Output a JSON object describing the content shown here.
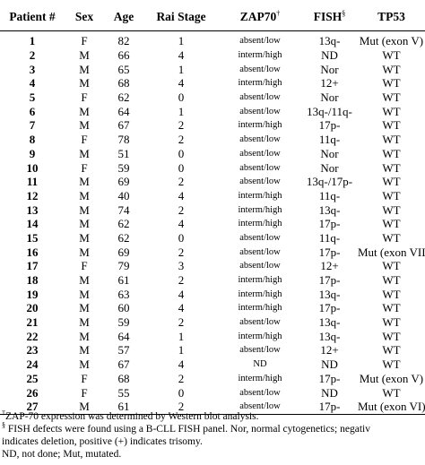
{
  "table": {
    "headers": {
      "patient": "Patient #",
      "sex": "Sex",
      "age": "Age",
      "rai": "Rai Stage",
      "zap70": "ZAP70",
      "zap70_mark": "†",
      "fish": "FISH",
      "fish_mark": "§",
      "tp53": "TP53"
    },
    "rows": [
      [
        "1",
        "F",
        "82",
        "1",
        "absent/low",
        "13q-",
        "Mut (exon V)"
      ],
      [
        "2",
        "M",
        "66",
        "4",
        "interm/high",
        "ND",
        "WT"
      ],
      [
        "3",
        "M",
        "65",
        "1",
        "absent/low",
        "Nor",
        "WT"
      ],
      [
        "4",
        "M",
        "68",
        "4",
        "interm/high",
        "12+",
        "WT"
      ],
      [
        "5",
        "F",
        "62",
        "0",
        "absent/low",
        "Nor",
        "WT"
      ],
      [
        "6",
        "M",
        "64",
        "1",
        "absent/low",
        "13q-/11q-",
        "WT"
      ],
      [
        "7",
        "M",
        "67",
        "2",
        "interm/high",
        "17p-",
        "WT"
      ],
      [
        "8",
        "F",
        "78",
        "2",
        "absent/low",
        "11q-",
        "WT"
      ],
      [
        "9",
        "M",
        "51",
        "0",
        "absent/low",
        "Nor",
        "WT"
      ],
      [
        "10",
        "F",
        "59",
        "0",
        "absent/low",
        "Nor",
        "WT"
      ],
      [
        "11",
        "M",
        "69",
        "2",
        "absent/low",
        "13q-/17p-",
        "WT"
      ],
      [
        "12",
        "M",
        "40",
        "4",
        "interm/high",
        "11q-",
        "WT"
      ],
      [
        "13",
        "M",
        "74",
        "2",
        "interm/high",
        "13q-",
        "WT"
      ],
      [
        "14",
        "M",
        "62",
        "4",
        "interm/high",
        "17p-",
        "WT"
      ],
      [
        "15",
        "M",
        "62",
        "0",
        "absent/low",
        "11q-",
        "WT"
      ],
      [
        "16",
        "M",
        "69",
        "2",
        "absent/low",
        "17p-",
        "Mut (exon VII)"
      ],
      [
        "17",
        "F",
        "79",
        "3",
        "absent/low",
        "12+",
        "WT"
      ],
      [
        "18",
        "M",
        "61",
        "2",
        "interm/high",
        "17p-",
        "WT"
      ],
      [
        "19",
        "M",
        "63",
        "4",
        "interm/high",
        "13q-",
        "WT"
      ],
      [
        "20",
        "M",
        "60",
        "4",
        "interm/high",
        "17p-",
        "WT"
      ],
      [
        "21",
        "M",
        "59",
        "2",
        "absent/low",
        "13q-",
        "WT"
      ],
      [
        "22",
        "M",
        "64",
        "1",
        "interm/high",
        "13q-",
        "WT"
      ],
      [
        "23",
        "M",
        "57",
        "1",
        "absent/low",
        "12+",
        "WT"
      ],
      [
        "24",
        "M",
        "67",
        "4",
        "ND",
        "ND",
        "WT"
      ],
      [
        "25",
        "F",
        "68",
        "2",
        "interm/high",
        "17p-",
        "Mut (exon V)"
      ],
      [
        "26",
        "F",
        "55",
        "0",
        "absent/low",
        "ND",
        "WT"
      ],
      [
        "27",
        "M",
        "61",
        "2",
        "absent/low",
        "17p-",
        "Mut (exon VI)"
      ]
    ]
  },
  "footnotes": {
    "zap_mark": "†",
    "zap_text": "ZAP-70 expression was determined by Western blot analysis.",
    "fish_mark": "§",
    "fish_text": " FISH defects were found using a B-CLL FISH panel. Nor, normal cytogenetics; negativ",
    "fish_text_2": "indicates deletion, positive (+) indicates trisomy.",
    "abbrev": "ND, not done; Mut, mutated."
  }
}
